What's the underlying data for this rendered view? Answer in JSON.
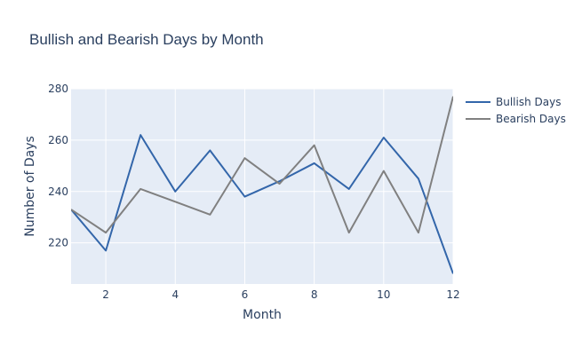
{
  "chart_data": {
    "type": "line",
    "title": "Bullish and Bearish Days by Month",
    "xlabel": "Month",
    "ylabel": "Number of Days",
    "x": [
      1,
      2,
      3,
      4,
      5,
      6,
      7,
      8,
      9,
      10,
      11,
      12
    ],
    "xlim": [
      1,
      12
    ],
    "ylim": [
      204,
      280
    ],
    "xticks": [
      2,
      4,
      6,
      8,
      10,
      12
    ],
    "yticks": [
      220,
      240,
      260,
      280
    ],
    "grid": true,
    "legend_position": "top-right",
    "plot_background": "#e5ecf6",
    "series": [
      {
        "name": "Bullish Days",
        "color": "#3366aa",
        "values": [
          233,
          217,
          262,
          240,
          256,
          238,
          244,
          251,
          241,
          261,
          245,
          208
        ]
      },
      {
        "name": "Bearish Days",
        "color": "#808080",
        "values": [
          233,
          224,
          241,
          236,
          231,
          253,
          243,
          258,
          224,
          248,
          224,
          277
        ]
      }
    ]
  }
}
